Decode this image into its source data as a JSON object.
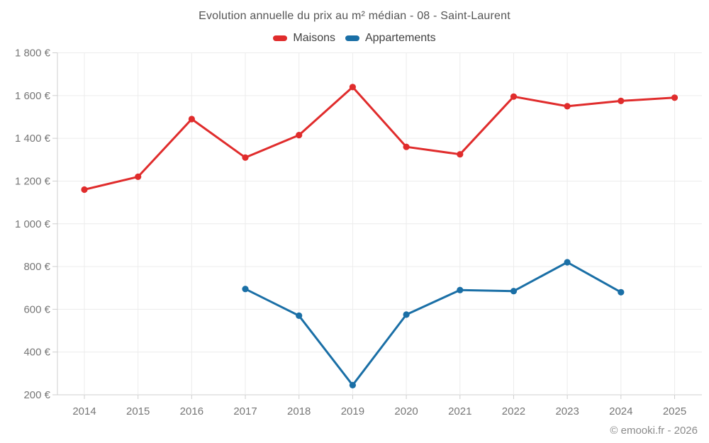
{
  "title": "Evolution annuelle du prix au m² médian - 08 - Saint-Laurent",
  "footer": "© emooki.fr - 2026",
  "legend": {
    "items": [
      {
        "label": "Maisons",
        "color": "#e02c2c"
      },
      {
        "label": "Appartements",
        "color": "#1a6fa6"
      }
    ]
  },
  "chart_data": {
    "type": "line",
    "title": "Evolution annuelle du prix au m² médian - 08 - Saint-Laurent",
    "x": [
      "2014",
      "2015",
      "2016",
      "2017",
      "2018",
      "2019",
      "2020",
      "2021",
      "2022",
      "2023",
      "2024",
      "2025"
    ],
    "series": [
      {
        "name": "Maisons",
        "color": "#e02c2c",
        "values": [
          1160,
          1220,
          1490,
          1310,
          1415,
          1640,
          1360,
          1325,
          1595,
          1550,
          1575,
          1590
        ]
      },
      {
        "name": "Appartements",
        "color": "#1a6fa6",
        "values": [
          null,
          null,
          null,
          695,
          570,
          245,
          575,
          690,
          685,
          820,
          680,
          null
        ]
      }
    ],
    "ylim": [
      200,
      1800
    ],
    "yticks": [
      {
        "value": 200,
        "label": "200 €"
      },
      {
        "value": 400,
        "label": "400 €"
      },
      {
        "value": 600,
        "label": "600 €"
      },
      {
        "value": 800,
        "label": "800 €"
      },
      {
        "value": 1000,
        "label": "1 000 €"
      },
      {
        "value": 1200,
        "label": "1 200 €"
      },
      {
        "value": 1400,
        "label": "1 400 €"
      },
      {
        "value": 1600,
        "label": "1 600 €"
      },
      {
        "value": 1800,
        "label": "1 800 €"
      }
    ],
    "xlabel": "",
    "ylabel": "",
    "grid": true,
    "legend_position": "top"
  }
}
